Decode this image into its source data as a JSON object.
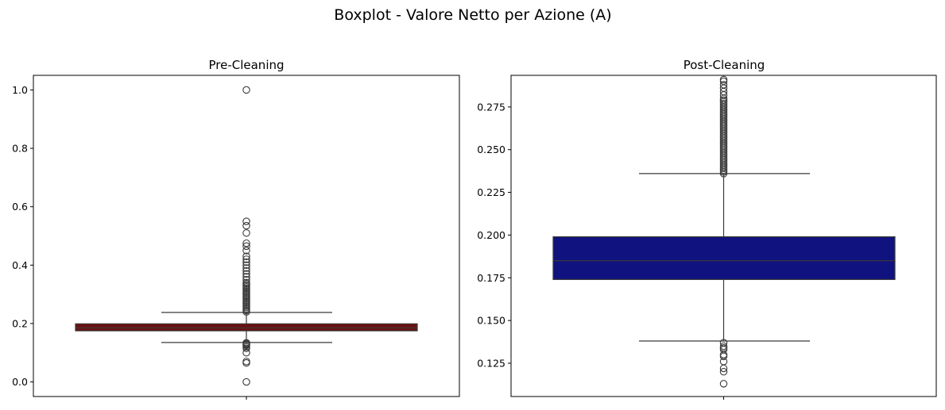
{
  "figure": {
    "title": "Boxplot - Valore Netto per Azione (A)"
  },
  "chart_data": [
    {
      "type": "box",
      "title": "Pre-Cleaning",
      "xlabel": "",
      "ylabel": "",
      "ylim": [
        -0.05,
        1.05
      ],
      "yticks": [
        0.0,
        0.2,
        0.4,
        0.6,
        0.8,
        1.0
      ],
      "ytick_labels": [
        "0.0",
        "0.2",
        "0.4",
        "0.6",
        "0.8",
        "1.0"
      ],
      "color": "#6b1111",
      "box": {
        "whisker_low": 0.135,
        "q1": 0.175,
        "median": 0.185,
        "q3": 0.199,
        "whisker_high": 0.238
      },
      "outliers": [
        0.0,
        0.065,
        0.07,
        0.1,
        0.115,
        0.12,
        0.125,
        0.128,
        0.131,
        0.134,
        0.24,
        0.245,
        0.25,
        0.255,
        0.26,
        0.265,
        0.27,
        0.275,
        0.28,
        0.285,
        0.29,
        0.295,
        0.3,
        0.305,
        0.31,
        0.315,
        0.32,
        0.325,
        0.33,
        0.335,
        0.34,
        0.35,
        0.36,
        0.37,
        0.38,
        0.39,
        0.4,
        0.41,
        0.42,
        0.43,
        0.45,
        0.465,
        0.475,
        0.51,
        0.535,
        0.55,
        1.0
      ]
    },
    {
      "type": "box",
      "title": "Post-Cleaning",
      "xlabel": "",
      "ylabel": "",
      "ylim": [
        0.1055,
        0.2935
      ],
      "yticks": [
        0.125,
        0.15,
        0.175,
        0.2,
        0.225,
        0.25,
        0.275
      ],
      "ytick_labels": [
        "0.125",
        "0.150",
        "0.175",
        "0.200",
        "0.225",
        "0.250",
        "0.275"
      ],
      "color": "#10127f",
      "box": {
        "whisker_low": 0.138,
        "q1": 0.174,
        "median": 0.185,
        "q3": 0.199,
        "whisker_high": 0.236
      },
      "outliers": [
        0.113,
        0.12,
        0.122,
        0.126,
        0.129,
        0.13,
        0.133,
        0.134,
        0.135,
        0.137,
        0.236,
        0.237,
        0.238,
        0.239,
        0.24,
        0.241,
        0.242,
        0.243,
        0.244,
        0.245,
        0.246,
        0.247,
        0.248,
        0.249,
        0.25,
        0.251,
        0.252,
        0.253,
        0.254,
        0.255,
        0.256,
        0.257,
        0.258,
        0.259,
        0.26,
        0.261,
        0.262,
        0.263,
        0.264,
        0.265,
        0.266,
        0.267,
        0.268,
        0.269,
        0.27,
        0.271,
        0.272,
        0.273,
        0.274,
        0.275,
        0.276,
        0.277,
        0.278,
        0.279,
        0.28,
        0.282,
        0.284,
        0.286,
        0.288,
        0.29,
        0.291
      ]
    }
  ]
}
